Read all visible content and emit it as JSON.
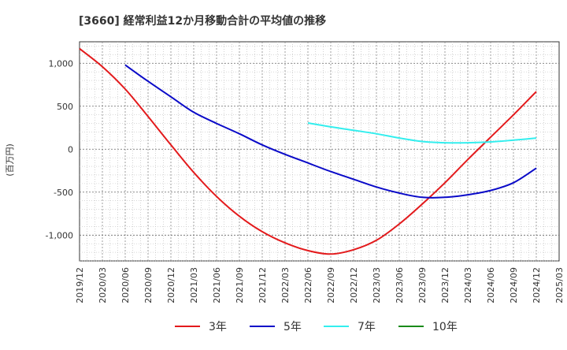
{
  "chart_data": {
    "type": "line",
    "title": "[3660]  経常利益12か月移動合計の平均値の推移",
    "ylabel": "(百万円)",
    "xlabel": "",
    "ylim": [
      -1300,
      1250
    ],
    "yticks": [
      -1000,
      -500,
      0,
      500,
      1000
    ],
    "ytick_labels": [
      "-1,000",
      "-500",
      "0",
      "500",
      "1,000"
    ],
    "grid": true,
    "legend_position": "bottom",
    "x_tick_labels": [
      "2019/12",
      "2020/03",
      "2020/06",
      "2020/09",
      "2020/12",
      "2021/03",
      "2021/06",
      "2021/09",
      "2021/12",
      "2022/03",
      "2022/06",
      "2022/09",
      "2022/12",
      "2023/03",
      "2023/06",
      "2023/09",
      "2023/12",
      "2024/03",
      "2024/06",
      "2024/09",
      "2024/12",
      "2025/03"
    ],
    "series": [
      {
        "name": "3年",
        "color": "#e31a1c",
        "values": [
          1170,
          960,
          700,
          380,
          50,
          -270,
          -550,
          -780,
          -960,
          -1090,
          -1180,
          -1220,
          -1170,
          -1060,
          -870,
          -640,
          -390,
          -120,
          140,
          400,
          670,
          null
        ]
      },
      {
        "name": "5年",
        "color": "#0a0ac8",
        "values": [
          null,
          null,
          980,
          790,
          610,
          430,
          300,
          180,
          50,
          -60,
          -160,
          -260,
          -350,
          -440,
          -510,
          -560,
          -560,
          -530,
          -480,
          -390,
          -220,
          null
        ]
      },
      {
        "name": "7年",
        "color": "#33eeee",
        "values": [
          null,
          null,
          null,
          null,
          null,
          null,
          null,
          null,
          null,
          null,
          305,
          260,
          220,
          180,
          130,
          90,
          75,
          75,
          85,
          105,
          130,
          null
        ]
      },
      {
        "name": "10年",
        "color": "#1a8a1a",
        "values": [
          null,
          null,
          null,
          null,
          null,
          null,
          null,
          null,
          null,
          null,
          null,
          null,
          null,
          null,
          null,
          null,
          null,
          null,
          null,
          null,
          null,
          null
        ]
      }
    ]
  }
}
